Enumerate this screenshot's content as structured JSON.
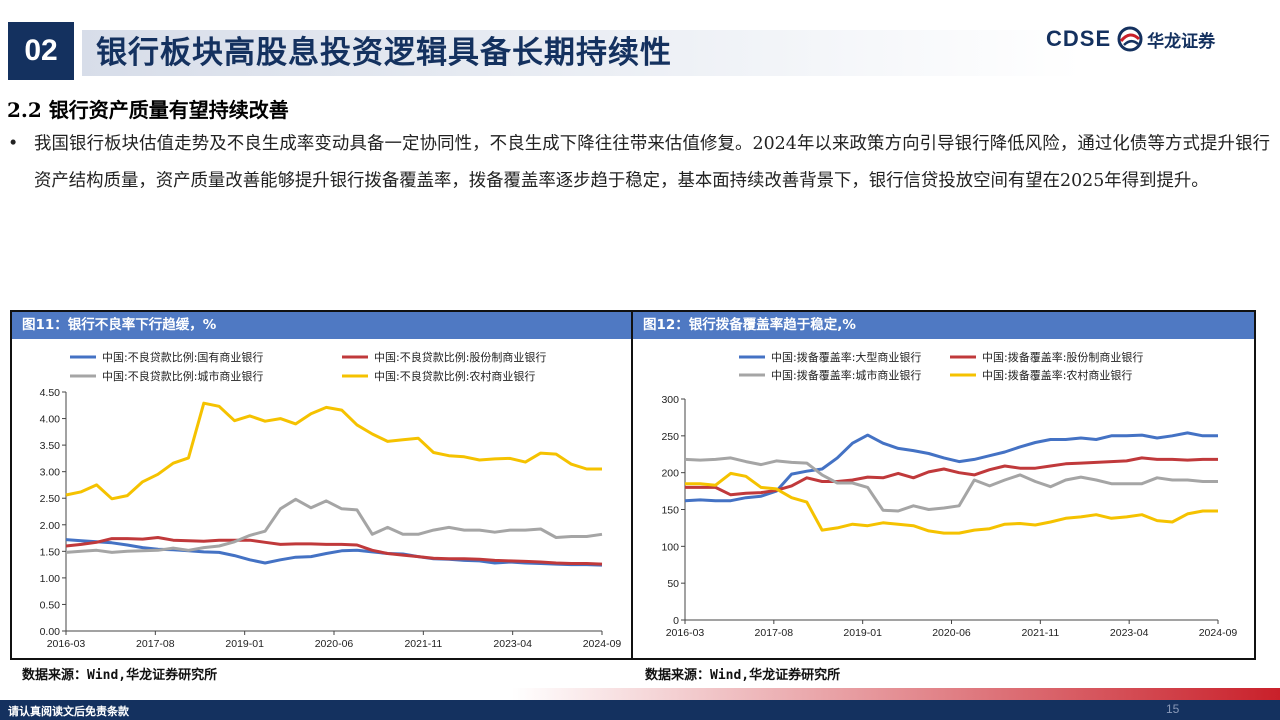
{
  "header": {
    "section_number": "02",
    "title": "银行板块高股息投资逻辑具备长期持续性",
    "logo_en": "CDSE",
    "logo_cn": "华龙证券"
  },
  "subsection_title": "2.2 银行资产质量有望持续改善",
  "paragraph": {
    "bullet": "•",
    "text": "我国银行板块估值走势及不良生成率变动具备一定协同性，不良生成下降往往带来估值修复。2024年以来政策方向引导银行降低风险，通过化债等方式提升银行资产结构质量，资产质量改善能够提升银行拨备覆盖率，拨备覆盖率逐步趋于稳定，基本面持续改善背景下，银行信贷投放空间有望在2025年得到提升。"
  },
  "figures": [
    {
      "title": "图11：银行不良率下行趋缓，%",
      "source": "数据来源：Wind,华龙证券研究所"
    },
    {
      "title": "图12：银行拨备覆盖率趋于稳定,%",
      "source": "数据来源：Wind,华龙证券研究所"
    }
  ],
  "footer": {
    "disclaimer": "请认真阅读文后免责条款",
    "page_number": "15"
  },
  "chart_data": [
    {
      "type": "line",
      "title": "图11：银行不良率下行趋缓，%",
      "x_tick_labels": [
        "2016-03",
        "2017-08",
        "2019-01",
        "2020-06",
        "2021-11",
        "2023-04",
        "2024-09"
      ],
      "ylim": [
        0,
        4.5
      ],
      "y_ticks": [
        "0.00",
        "0.50",
        "1.00",
        "1.50",
        "2.00",
        "2.50",
        "3.00",
        "3.50",
        "4.00",
        "4.50"
      ],
      "legend_position": "top",
      "series": [
        {
          "name": "中国:不良贷款比例:国有商业银行",
          "color": "#4472c4",
          "values": [
            1.72,
            1.7,
            1.68,
            1.66,
            1.62,
            1.57,
            1.54,
            1.53,
            1.51,
            1.49,
            1.48,
            1.42,
            1.34,
            1.28,
            1.34,
            1.39,
            1.4,
            1.46,
            1.51,
            1.52,
            1.49,
            1.46,
            1.45,
            1.4,
            1.36,
            1.35,
            1.33,
            1.32,
            1.28,
            1.3,
            1.28,
            1.27,
            1.26,
            1.25,
            1.25,
            1.24
          ]
        },
        {
          "name": "中国:不良贷款比例:股份制商业银行",
          "color": "#c0393b",
          "values": [
            1.6,
            1.63,
            1.67,
            1.74,
            1.74,
            1.73,
            1.76,
            1.71,
            1.7,
            1.69,
            1.71,
            1.71,
            1.71,
            1.67,
            1.63,
            1.64,
            1.64,
            1.63,
            1.63,
            1.62,
            1.52,
            1.46,
            1.43,
            1.4,
            1.37,
            1.36,
            1.36,
            1.35,
            1.33,
            1.32,
            1.31,
            1.3,
            1.28,
            1.27,
            1.27,
            1.26
          ]
        },
        {
          "name": "中国:不良贷款比例:城市商业银行",
          "color": "#a5a5a5",
          "values": [
            1.48,
            1.5,
            1.52,
            1.48,
            1.5,
            1.51,
            1.52,
            1.56,
            1.52,
            1.57,
            1.6,
            1.68,
            1.8,
            1.88,
            2.3,
            2.48,
            2.32,
            2.45,
            2.3,
            2.28,
            1.82,
            1.95,
            1.82,
            1.82,
            1.9,
            1.95,
            1.9,
            1.9,
            1.86,
            1.9,
            1.9,
            1.92,
            1.76,
            1.78,
            1.78,
            1.82
          ]
        },
        {
          "name": "中国:不良贷款比例:农村商业银行",
          "color": "#f5c200",
          "values": [
            2.56,
            2.62,
            2.75,
            2.49,
            2.55,
            2.81,
            2.95,
            3.16,
            3.26,
            4.29,
            4.23,
            3.96,
            4.05,
            3.95,
            4.0,
            3.9,
            4.09,
            4.21,
            4.16,
            3.88,
            3.71,
            3.57,
            3.6,
            3.63,
            3.36,
            3.3,
            3.28,
            3.22,
            3.24,
            3.25,
            3.18,
            3.35,
            3.33,
            3.14,
            3.05,
            3.05
          ]
        }
      ]
    },
    {
      "type": "line",
      "title": "图12：银行拨备覆盖率趋于稳定,%",
      "x_tick_labels": [
        "2016-03",
        "2017-08",
        "2019-01",
        "2020-06",
        "2021-11",
        "2023-04",
        "2024-09"
      ],
      "ylim": [
        0,
        300
      ],
      "y_ticks": [
        "0",
        "50",
        "100",
        "150",
        "200",
        "250",
        "300"
      ],
      "legend_position": "top",
      "series": [
        {
          "name": "中国:拨备覆盖率:大型商业银行",
          "color": "#4472c4",
          "values": [
            162,
            163,
            162,
            162,
            166,
            168,
            175,
            198,
            202,
            205,
            220,
            240,
            251,
            240,
            233,
            230,
            226,
            220,
            215,
            218,
            223,
            228,
            235,
            241,
            245,
            245,
            247,
            245,
            250,
            250,
            251,
            247,
            250,
            254,
            250,
            250
          ]
        },
        {
          "name": "中国:拨备覆盖率:股份制商业银行",
          "color": "#c0393b",
          "values": [
            180,
            180,
            180,
            170,
            172,
            173,
            176,
            182,
            193,
            188,
            188,
            190,
            194,
            193,
            199,
            193,
            201,
            205,
            200,
            197,
            204,
            209,
            206,
            206,
            209,
            212,
            213,
            214,
            215,
            216,
            220,
            218,
            218,
            217,
            218,
            218
          ]
        },
        {
          "name": "中国:拨备覆盖率:城市商业银行",
          "color": "#a5a5a5",
          "values": [
            218,
            217,
            218,
            220,
            215,
            211,
            216,
            214,
            213,
            197,
            186,
            186,
            180,
            149,
            148,
            155,
            150,
            152,
            155,
            190,
            182,
            190,
            197,
            188,
            181,
            190,
            194,
            190,
            185,
            185,
            185,
            193,
            190,
            190,
            188,
            188
          ]
        },
        {
          "name": "中国:拨备覆盖率:农村商业银行",
          "color": "#f5c200",
          "values": [
            185,
            185,
            183,
            199,
            195,
            180,
            178,
            166,
            160,
            122,
            125,
            130,
            128,
            132,
            130,
            128,
            121,
            118,
            118,
            122,
            124,
            130,
            131,
            129,
            133,
            138,
            140,
            143,
            138,
            140,
            143,
            135,
            133,
            144,
            148,
            148
          ]
        }
      ]
    }
  ]
}
